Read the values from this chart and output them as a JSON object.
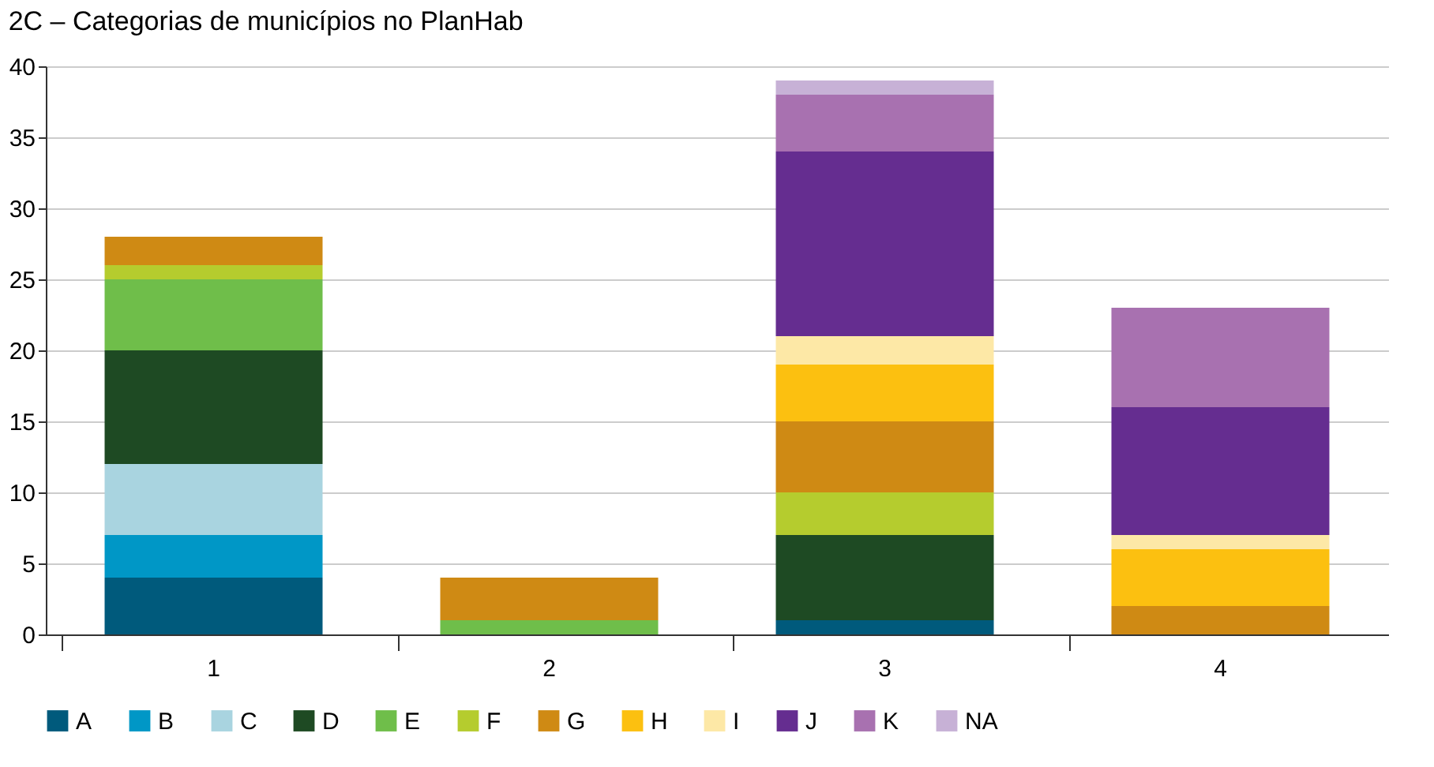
{
  "chart_data": {
    "type": "bar",
    "title": "2C – Categorias de municípios no PlanHab",
    "stacked": true,
    "categories": [
      "1",
      "2",
      "3",
      "4"
    ],
    "series": [
      {
        "name": "A",
        "color": "#005a7c",
        "values": [
          4,
          null,
          1,
          null
        ]
      },
      {
        "name": "B",
        "color": "#0097c6",
        "values": [
          3,
          null,
          null,
          null
        ]
      },
      {
        "name": "C",
        "color": "#a9d4e0",
        "values": [
          5,
          null,
          null,
          null
        ]
      },
      {
        "name": "D",
        "color": "#1e4a23",
        "values": [
          8,
          null,
          6,
          null
        ]
      },
      {
        "name": "E",
        "color": "#6fbe4a",
        "values": [
          5,
          1,
          null,
          null
        ]
      },
      {
        "name": "F",
        "color": "#b5cc2e",
        "values": [
          1,
          null,
          3,
          null
        ]
      },
      {
        "name": "G",
        "color": "#cf8a14",
        "values": [
          2,
          3,
          5,
          2
        ]
      },
      {
        "name": "H",
        "color": "#fcc010",
        "values": [
          null,
          null,
          4,
          4
        ]
      },
      {
        "name": "I",
        "color": "#fde8a6",
        "values": [
          null,
          null,
          2,
          1
        ]
      },
      {
        "name": "J",
        "color": "#652d90",
        "values": [
          null,
          null,
          13,
          9
        ]
      },
      {
        "name": "K",
        "color": "#a871b0",
        "values": [
          null,
          null,
          4,
          7
        ]
      },
      {
        "name": "NA",
        "color": "#c7b1d6",
        "values": [
          null,
          null,
          1,
          null
        ]
      }
    ],
    "ylim": [
      0,
      40
    ],
    "yticks": [
      0,
      5,
      10,
      15,
      20,
      25,
      30,
      35,
      40
    ],
    "grid": "y",
    "legend": "bottom"
  }
}
